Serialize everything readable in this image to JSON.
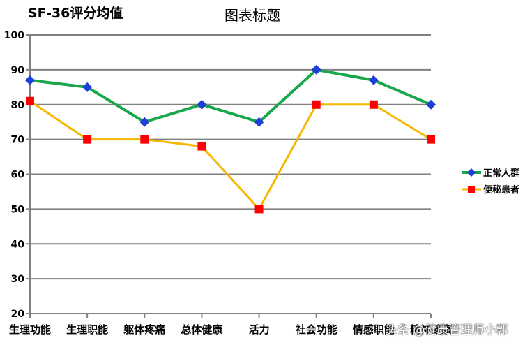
{
  "corner_title": "SF-36评分均值",
  "watermark": "头条 @健康管理师小郭",
  "chart_data": {
    "type": "line",
    "title": "图表标题",
    "subtitle": "SF-36评分均值",
    "categories": [
      "生理功能",
      "生理职能",
      "躯体疼痛",
      "总体健康",
      "活力",
      "社会功能",
      "情感职能",
      "精神健康"
    ],
    "series": [
      {
        "name": "正常人群",
        "values": [
          87,
          85,
          75,
          80,
          75,
          90,
          87,
          80
        ],
        "color": "#1aa64b",
        "marker": "diamond",
        "marker_color": "#1f3fd6"
      },
      {
        "name": "便秘患者",
        "values": [
          81,
          70,
          70,
          68,
          50,
          80,
          80,
          70
        ],
        "color": "#f5b800",
        "marker": "square",
        "marker_color": "#ff0000"
      }
    ],
    "xlabel": "",
    "ylabel": "",
    "ylim": [
      20,
      100
    ],
    "yticks": [
      20,
      30,
      40,
      50,
      60,
      70,
      80,
      90,
      100
    ],
    "grid": true,
    "legend_position": "right"
  }
}
